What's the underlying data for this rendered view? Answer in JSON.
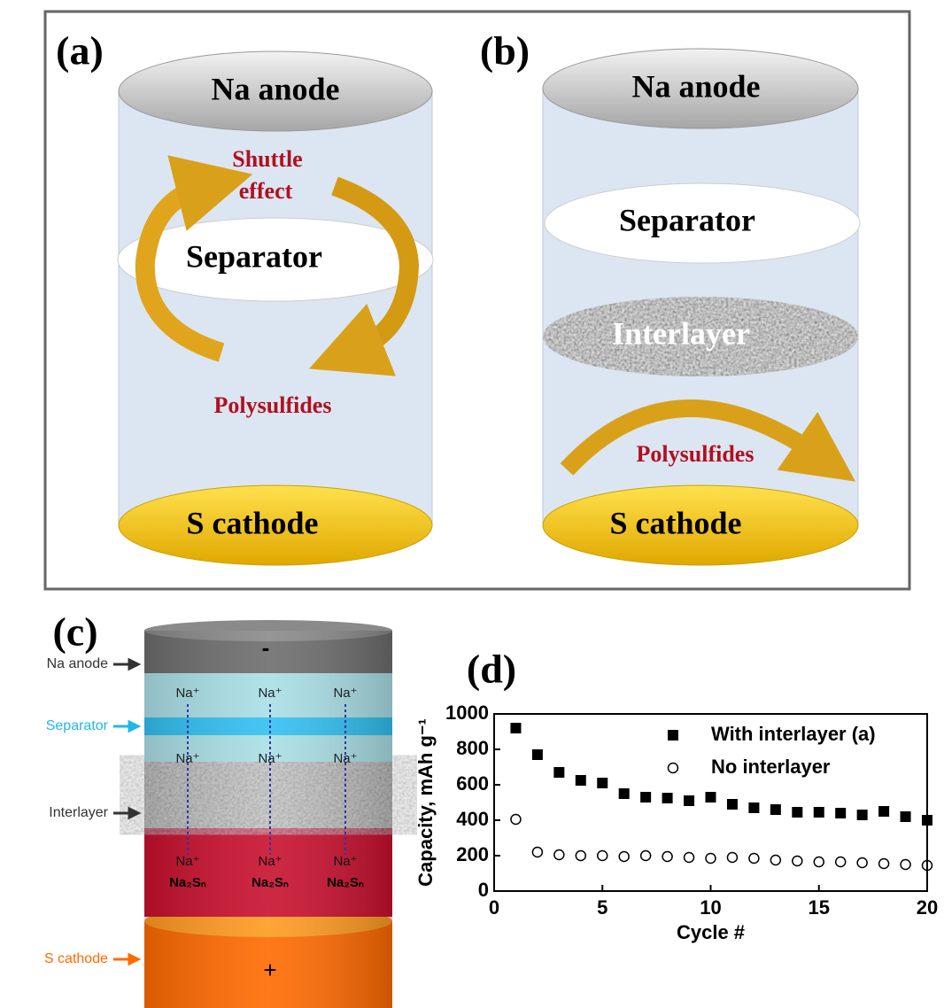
{
  "panel_a": {
    "label": "(a)",
    "anode": "Na anode",
    "shuttle": [
      "Shuttle",
      "effect"
    ],
    "separator": "Separator",
    "polysulfides": "Polysulfides",
    "cathode": "S cathode"
  },
  "panel_b": {
    "label": "(b)",
    "anode": "Na anode",
    "separator": "Separator",
    "interlayer": "Interlayer",
    "polysulfides": "Polysulfides",
    "cathode": "S cathode"
  },
  "panel_c": {
    "label": "(c)",
    "side_labels": [
      "Na anode",
      "Separator",
      "Interlayer",
      "S cathode"
    ],
    "minus": "-",
    "plus": "+",
    "ion": "Na⁺",
    "compound": "Na₂Sₙ"
  },
  "chart_data": {
    "type": "scatter",
    "label": "(d)",
    "x_label": "Cycle #",
    "y_label": "Capacity, mAh g⁻¹",
    "x": [
      1,
      2,
      3,
      4,
      5,
      6,
      7,
      8,
      9,
      10,
      11,
      12,
      13,
      14,
      15,
      16,
      17,
      18,
      19,
      20
    ],
    "series": [
      {
        "name": "With interlayer (a)",
        "color": "#000000",
        "marker": "square",
        "values": [
          920,
          770,
          670,
          625,
          610,
          550,
          530,
          525,
          510,
          530,
          490,
          470,
          460,
          445,
          445,
          440,
          430,
          450,
          420,
          400
        ]
      },
      {
        "name": "No interlayer",
        "color": "#000000",
        "marker": "open-circle",
        "values": [
          405,
          220,
          205,
          200,
          200,
          195,
          200,
          195,
          190,
          185,
          190,
          185,
          175,
          170,
          165,
          165,
          160,
          155,
          150,
          145
        ]
      }
    ],
    "xlim": [
      0,
      20
    ],
    "ylim": [
      0,
      1000
    ],
    "xticks": [
      0,
      5,
      10,
      15,
      20
    ],
    "yticks": [
      0,
      200,
      400,
      600,
      800,
      1000
    ]
  }
}
